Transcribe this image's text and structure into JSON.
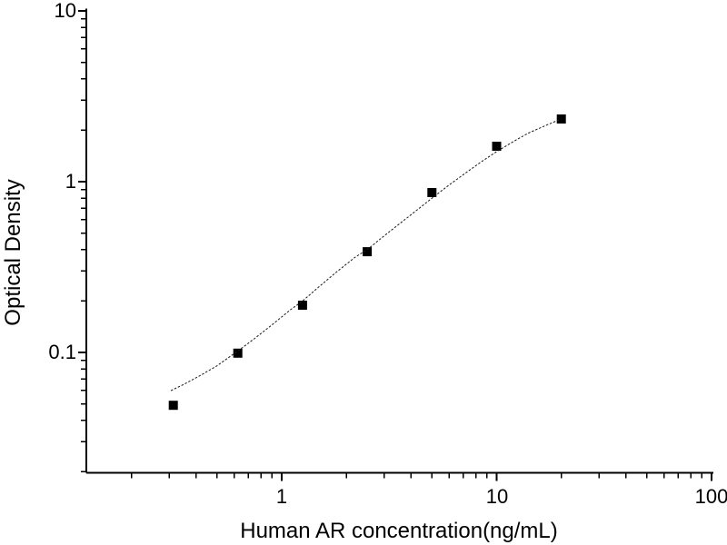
{
  "figure": {
    "background": "#ffffff",
    "axis_color": "#000000",
    "marker_color": "#000000",
    "curve_color": "#1a1a1a"
  },
  "chart_data": {
    "type": "scatter",
    "title": "",
    "xlabel": "Human AR concentration(ng/mL)",
    "ylabel": "Optical Density",
    "x_scale": "log",
    "y_scale": "log",
    "xlim": [
      0.123,
      102
    ],
    "ylim": [
      0.0197,
      10.3
    ],
    "grid": false,
    "legend": "none",
    "x_major_ticks": [
      {
        "value": 1,
        "label": "1"
      },
      {
        "value": 10,
        "label": "10"
      },
      {
        "value": 100,
        "label": "100"
      }
    ],
    "y_major_ticks": [
      {
        "value": 0.1,
        "label": "0.1"
      },
      {
        "value": 1,
        "label": "1"
      },
      {
        "value": 10,
        "label": "10"
      }
    ],
    "x_minor_ticks": [
      0.2,
      0.3,
      0.4,
      0.5,
      0.6,
      0.7,
      0.8,
      0.9,
      2,
      3,
      4,
      5,
      6,
      7,
      8,
      9,
      20,
      30,
      40,
      50,
      60,
      70,
      80,
      90
    ],
    "y_minor_ticks": [
      0.02,
      0.03,
      0.04,
      0.05,
      0.06,
      0.07,
      0.08,
      0.09,
      0.2,
      0.3,
      0.4,
      0.5,
      0.6,
      0.7,
      0.8,
      0.9,
      2,
      3,
      4,
      5,
      6,
      7,
      8,
      9
    ],
    "series": [
      {
        "name": "standard-points",
        "type": "scatter",
        "marker": "filled-square",
        "marker_size": 10,
        "color": "#000000",
        "points": [
          {
            "x": 0.313,
            "y": 0.049
          },
          {
            "x": 0.625,
            "y": 0.099
          },
          {
            "x": 1.25,
            "y": 0.189
          },
          {
            "x": 2.5,
            "y": 0.389
          },
          {
            "x": 5,
            "y": 0.863
          },
          {
            "x": 10,
            "y": 1.612
          },
          {
            "x": 20,
            "y": 2.328
          }
        ]
      },
      {
        "name": "fit-curve",
        "type": "line",
        "style": "dotted",
        "color": "#1a1a1a",
        "points": [
          {
            "x": 0.305,
            "y": 0.0597
          },
          {
            "x": 0.35,
            "y": 0.065
          },
          {
            "x": 0.42,
            "y": 0.0735
          },
          {
            "x": 0.5,
            "y": 0.0835
          },
          {
            "x": 0.625,
            "y": 0.102
          },
          {
            "x": 0.75,
            "y": 0.121
          },
          {
            "x": 0.9,
            "y": 0.145
          },
          {
            "x": 1.1,
            "y": 0.178
          },
          {
            "x": 1.25,
            "y": 0.2
          },
          {
            "x": 1.5,
            "y": 0.244
          },
          {
            "x": 1.8,
            "y": 0.296
          },
          {
            "x": 2.2,
            "y": 0.362
          },
          {
            "x": 2.5,
            "y": 0.4
          },
          {
            "x": 3.0,
            "y": 0.482
          },
          {
            "x": 3.6,
            "y": 0.578
          },
          {
            "x": 4.3,
            "y": 0.688
          },
          {
            "x": 5.0,
            "y": 0.8
          },
          {
            "x": 6.0,
            "y": 0.955
          },
          {
            "x": 7.0,
            "y": 1.1
          },
          {
            "x": 8.5,
            "y": 1.31
          },
          {
            "x": 10,
            "y": 1.5
          },
          {
            "x": 12,
            "y": 1.72
          },
          {
            "x": 14,
            "y": 1.92
          },
          {
            "x": 17,
            "y": 2.14
          },
          {
            "x": 20,
            "y": 2.33
          }
        ]
      }
    ]
  }
}
